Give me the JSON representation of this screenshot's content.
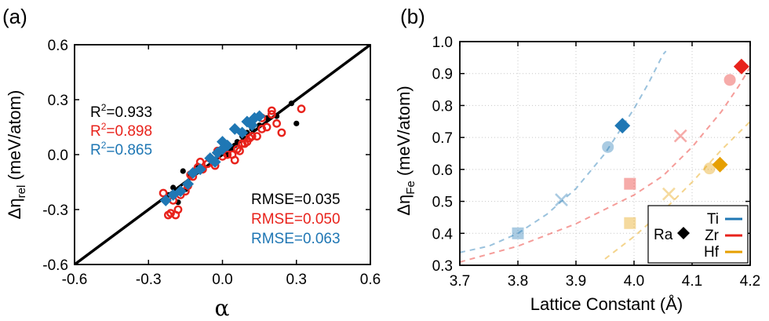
{
  "chart_data": [
    {
      "type": "scatter",
      "panel_label": "(a)",
      "xlabel": "α",
      "ylabel": {
        "main": "Δη",
        "sub": "rel",
        "rest": " (meV/atom)"
      },
      "xlim": [
        -0.6,
        0.6
      ],
      "ylim": [
        -0.6,
        0.6
      ],
      "x_ticks": [
        "-0.6",
        "-0.3",
        "0.0",
        "0.3",
        "0.6"
      ],
      "y_ticks": [
        "-0.6",
        "-0.3",
        "0.0",
        "0.3",
        "0.6"
      ],
      "x_tick_values": [
        -0.6,
        -0.3,
        0.0,
        0.3,
        0.6
      ],
      "y_tick_values": [
        -0.6,
        -0.3,
        0.0,
        0.3,
        0.6
      ],
      "fit_line": {
        "slope": 1,
        "intercept": 0,
        "color": "#000000"
      },
      "r2": [
        {
          "label": "R",
          "sup": "2",
          "value": "=0.933",
          "color": "#000000"
        },
        {
          "label": "R",
          "sup": "2",
          "value": "=0.898",
          "color": "#e8231c"
        },
        {
          "label": "R",
          "sup": "2",
          "value": "=0.865",
          "color": "#1f77b4"
        }
      ],
      "rmse": [
        {
          "text": "RMSE=0.035",
          "color": "#000000"
        },
        {
          "text": "RMSE=0.050",
          "color": "#e8231c"
        },
        {
          "text": "RMSE=0.063",
          "color": "#1f77b4"
        }
      ],
      "series": [
        {
          "marker": "filled-circle",
          "color": "#000000",
          "points": [
            [
              -0.22,
              -0.22
            ],
            [
              -0.2,
              -0.18
            ],
            [
              -0.18,
              -0.26
            ],
            [
              -0.15,
              -0.19
            ],
            [
              -0.13,
              -0.11
            ],
            [
              -0.1,
              -0.06
            ],
            [
              -0.08,
              -0.08
            ],
            [
              -0.05,
              -0.03
            ],
            [
              -0.02,
              0.0
            ],
            [
              0.0,
              0.02
            ],
            [
              0.02,
              0.0
            ],
            [
              0.04,
              0.03
            ],
            [
              0.06,
              0.07
            ],
            [
              0.08,
              0.1
            ],
            [
              0.1,
              0.12
            ],
            [
              0.12,
              0.14
            ],
            [
              0.15,
              0.16
            ],
            [
              0.18,
              0.2
            ],
            [
              0.22,
              0.21
            ],
            [
              0.28,
              0.28
            ],
            [
              0.3,
              0.17
            ],
            [
              -0.16,
              -0.09
            ],
            [
              0.05,
              0.05
            ]
          ]
        },
        {
          "marker": "open-circle",
          "color": "#e8231c",
          "points": [
            [
              -0.24,
              -0.21
            ],
            [
              -0.22,
              -0.33
            ],
            [
              -0.21,
              -0.32
            ],
            [
              -0.2,
              -0.25
            ],
            [
              -0.19,
              -0.33
            ],
            [
              -0.18,
              -0.3
            ],
            [
              -0.17,
              -0.22
            ],
            [
              -0.15,
              -0.2
            ],
            [
              -0.14,
              -0.17
            ],
            [
              -0.13,
              -0.11
            ],
            [
              -0.12,
              -0.12
            ],
            [
              -0.1,
              -0.07
            ],
            [
              -0.09,
              -0.04
            ],
            [
              -0.08,
              -0.08
            ],
            [
              -0.06,
              -0.05
            ],
            [
              -0.05,
              -0.02
            ],
            [
              -0.03,
              -0.06
            ],
            [
              -0.02,
              0.02
            ],
            [
              0.0,
              -0.01
            ],
            [
              0.02,
              0.0
            ],
            [
              0.04,
              0.0
            ],
            [
              0.05,
              -0.03
            ],
            [
              0.06,
              0.03
            ],
            [
              0.07,
              0.02
            ],
            [
              0.08,
              0.06
            ],
            [
              0.09,
              0.06
            ],
            [
              0.1,
              0.07
            ],
            [
              0.11,
              0.09
            ],
            [
              0.12,
              0.1
            ],
            [
              0.14,
              0.1
            ],
            [
              0.16,
              0.14
            ],
            [
              0.18,
              0.15
            ],
            [
              0.2,
              0.22
            ],
            [
              0.22,
              0.17
            ],
            [
              0.24,
              0.12
            ],
            [
              0.2,
              0.24
            ],
            [
              0.32,
              0.25
            ],
            [
              0.16,
              0.2
            ]
          ]
        },
        {
          "marker": "diamond",
          "color": "#1f77b4",
          "points": [
            [
              -0.23,
              -0.25
            ],
            [
              -0.2,
              -0.22
            ],
            [
              -0.17,
              -0.2
            ],
            [
              -0.14,
              -0.16
            ],
            [
              -0.12,
              -0.1
            ],
            [
              -0.09,
              -0.08
            ],
            [
              -0.05,
              -0.02
            ],
            [
              -0.02,
              0.01
            ],
            [
              0.0,
              0.07
            ],
            [
              0.02,
              0.05
            ],
            [
              0.05,
              0.14
            ],
            [
              0.08,
              0.12
            ],
            [
              0.1,
              0.18
            ],
            [
              0.12,
              0.16
            ],
            [
              0.13,
              0.2
            ],
            [
              0.15,
              0.21
            ],
            [
              -0.03,
              -0.04
            ],
            [
              0.0,
              0.03
            ]
          ]
        }
      ]
    },
    {
      "type": "scatter",
      "panel_label": "(b)",
      "xlabel": "Lattice Constant (Å)",
      "ylabel": {
        "main": "Δη",
        "sub": "Fe",
        "rest": " (meV/atom)"
      },
      "xlim": [
        3.7,
        4.2
      ],
      "ylim": [
        0.3,
        1.0
      ],
      "x_ticks": [
        "3.7",
        "3.8",
        "3.9",
        "4.0",
        "4.1",
        "4.2"
      ],
      "y_ticks": [
        "0.3",
        "0.4",
        "0.5",
        "0.6",
        "0.7",
        "0.8",
        "0.9",
        "1.0"
      ],
      "x_tick_values": [
        3.7,
        3.8,
        3.9,
        4.0,
        4.1,
        4.2
      ],
      "y_tick_values": [
        0.3,
        0.4,
        0.5,
        0.6,
        0.7,
        0.8,
        0.9,
        1.0
      ],
      "legend": {
        "ra_label": "Ra",
        "entries": [
          {
            "name": "Ti",
            "color": "#1f77b4"
          },
          {
            "name": "Zr",
            "color": "#e8231c"
          },
          {
            "name": "Hf",
            "color": "#e69f00"
          }
        ],
        "placement": "bottom-right"
      },
      "curves": [
        {
          "color": "#1f77b4",
          "points": [
            [
              3.7,
              0.34
            ],
            [
              3.75,
              0.36
            ],
            [
              3.8,
              0.4
            ],
            [
              3.85,
              0.46
            ],
            [
              3.9,
              0.54
            ],
            [
              3.95,
              0.65
            ],
            [
              4.0,
              0.79
            ],
            [
              4.025,
              0.87
            ],
            [
              4.05,
              0.96
            ],
            [
              4.055,
              0.97
            ]
          ]
        },
        {
          "color": "#e8231c",
          "points": [
            [
              3.7,
              0.31
            ],
            [
              3.8,
              0.36
            ],
            [
              3.9,
              0.43
            ],
            [
              4.0,
              0.52
            ],
            [
              4.05,
              0.58
            ],
            [
              4.1,
              0.67
            ],
            [
              4.15,
              0.78
            ],
            [
              4.18,
              0.86
            ],
            [
              4.2,
              0.92
            ]
          ]
        },
        {
          "color": "#e69f00",
          "points": [
            [
              3.95,
              0.32
            ],
            [
              4.0,
              0.39
            ],
            [
              4.05,
              0.47
            ],
            [
              4.1,
              0.56
            ],
            [
              4.15,
              0.66
            ],
            [
              4.2,
              0.75
            ]
          ]
        }
      ],
      "points": [
        {
          "series": "Ti",
          "marker": "square",
          "x": 3.8,
          "y": 0.4,
          "faded": true
        },
        {
          "series": "Ti",
          "marker": "x",
          "x": 3.875,
          "y": 0.505,
          "faded": true
        },
        {
          "series": "Ti",
          "marker": "circle",
          "x": 3.955,
          "y": 0.67,
          "faded": true
        },
        {
          "series": "Ti",
          "marker": "diamond",
          "x": 3.98,
          "y": 0.737,
          "faded": false
        },
        {
          "series": "Zr",
          "marker": "square",
          "x": 3.993,
          "y": 0.555,
          "faded": true
        },
        {
          "series": "Zr",
          "marker": "x",
          "x": 4.08,
          "y": 0.705,
          "faded": true
        },
        {
          "series": "Zr",
          "marker": "circle",
          "x": 4.165,
          "y": 0.88,
          "faded": true
        },
        {
          "series": "Zr",
          "marker": "diamond",
          "x": 4.185,
          "y": 0.922,
          "faded": false
        },
        {
          "series": "Hf",
          "marker": "square",
          "x": 3.993,
          "y": 0.432,
          "faded": true
        },
        {
          "series": "Hf",
          "marker": "x",
          "x": 4.06,
          "y": 0.523,
          "faded": true
        },
        {
          "series": "Hf",
          "marker": "circle",
          "x": 4.13,
          "y": 0.603,
          "faded": true
        },
        {
          "series": "Hf",
          "marker": "diamond",
          "x": 4.148,
          "y": 0.615,
          "faded": false
        }
      ]
    }
  ]
}
